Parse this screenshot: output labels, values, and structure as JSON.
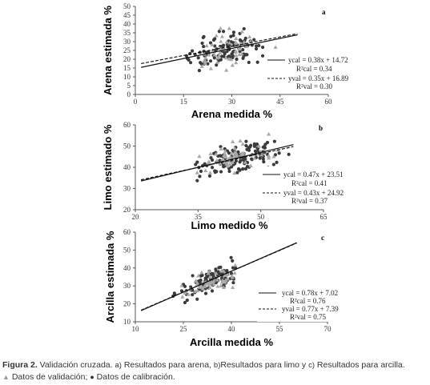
{
  "chart_data": [
    {
      "type": "scatter",
      "panel_label": "a",
      "xlabel": "Arena medida %",
      "ylabel": "Arena estimada %",
      "xlim": [
        0,
        60
      ],
      "ylim": [
        0,
        50
      ],
      "xticks": [
        "0",
        "15",
        "30",
        "45",
        "60"
      ],
      "yticks": [
        "0",
        "5",
        "10",
        "15",
        "20",
        "25",
        "30",
        "35",
        "40",
        "45",
        "50"
      ],
      "series": [
        {
          "marker": "triangle",
          "color": "#a8a8a8",
          "points": []
        },
        {
          "marker": "circle",
          "color": "#3a3a3a",
          "points": []
        }
      ],
      "fits": [
        {
          "style": "solid",
          "slope": 0.38,
          "intercept": 14.72,
          "eq": "ycal = 0.38x + 14.72",
          "r2": "R²cal = 0.34"
        },
        {
          "style": "dashed",
          "slope": 0.35,
          "intercept": 16.89,
          "eq": "yval = 0.35x + 16.89",
          "r2": "R²val = 0.30"
        }
      ]
    },
    {
      "type": "scatter",
      "panel_label": "b",
      "xlabel": "Limo medido %",
      "ylabel": "Limo estimado %",
      "xlim": [
        20,
        65
      ],
      "ylim": [
        20,
        60
      ],
      "xticks": [
        "20",
        "35",
        "50",
        "65"
      ],
      "yticks": [
        "20",
        "30",
        "40",
        "50",
        "60"
      ],
      "series": [
        {
          "marker": "triangle",
          "color": "#a8a8a8",
          "points": []
        },
        {
          "marker": "circle",
          "color": "#3a3a3a",
          "points": []
        }
      ],
      "fits": [
        {
          "style": "solid",
          "slope": 0.47,
          "intercept": 23.51,
          "eq": "ycal = 0.47x + 23.51",
          "r2": "R²cal = 0.41"
        },
        {
          "style": "dashed",
          "slope": 0.43,
          "intercept": 24.92,
          "eq": "yval = 0.43x + 24.92",
          "r2": "R²val = 0.37"
        }
      ]
    },
    {
      "type": "scatter",
      "panel_label": "c",
      "xlabel": "Arcilla medida %",
      "ylabel": "Arcilla estimada %",
      "xlim": [
        10,
        70
      ],
      "ylim": [
        10,
        60
      ],
      "xticks": [
        "10",
        "25",
        "40",
        "55",
        "70"
      ],
      "yticks": [
        "10",
        "20",
        "30",
        "40",
        "50",
        "60"
      ],
      "series": [
        {
          "marker": "triangle",
          "color": "#a8a8a8",
          "points": []
        },
        {
          "marker": "circle",
          "color": "#3a3a3a",
          "points": []
        }
      ],
      "fits": [
        {
          "style": "solid",
          "slope": 0.78,
          "intercept": 7.02,
          "eq": "ycal = 0.78x + 7.02",
          "r2": "R²cal = 0.76"
        },
        {
          "style": "dashed",
          "slope": 0.77,
          "intercept": 7.39,
          "eq": "yval = 0.77x + 7.39",
          "r2": "R²val = 0.75"
        }
      ]
    }
  ],
  "caption": {
    "figure_label": "Figura 2.",
    "text": " Validación cruzada. ",
    "a_mark": "a)",
    "a_text": " Resultados para arena, ",
    "b_mark": "b)",
    "b_text": "Resultados para limo y ",
    "c_mark": "c)",
    "c_text": " Resultados para arcilla.",
    "triangle_glyph": "▲",
    "validation_text": " Datos de validación; ",
    "circle_glyph": "●",
    "calibration_text": " Datos de calibración."
  }
}
